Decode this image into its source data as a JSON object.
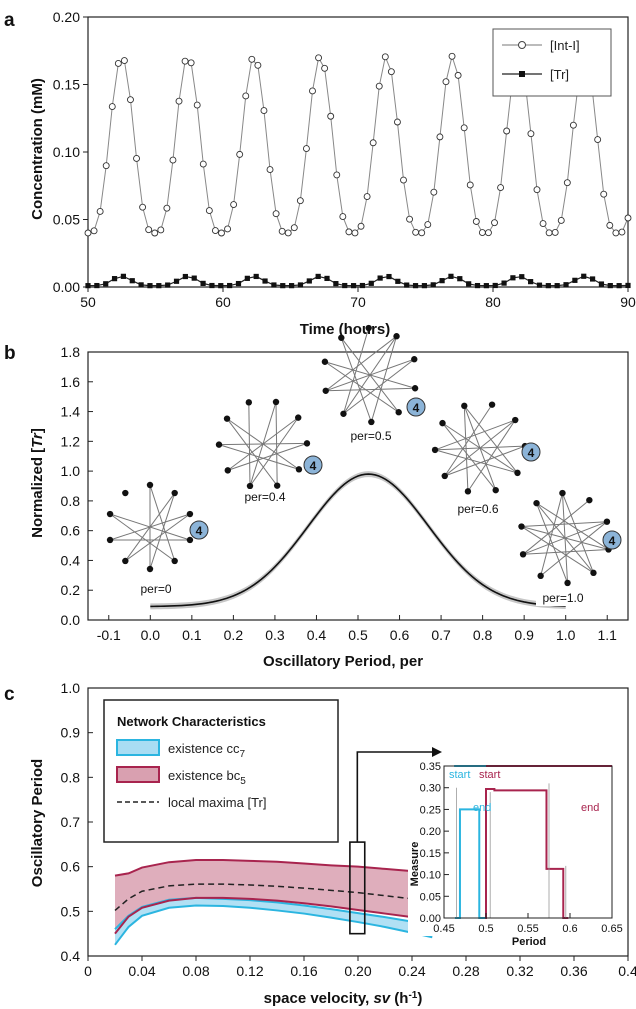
{
  "panels": [
    "a",
    "b",
    "c"
  ],
  "colors": {
    "int": "#555555",
    "tr": "#111111",
    "cyan": "#2bb5e0",
    "cyan_fill": "#a9ddf3",
    "red": "#a8244e",
    "red_fill": "#d9a0b0",
    "badge": "#8cb4d8"
  },
  "chart_data": [
    {
      "type": "line",
      "id": "a",
      "xlabel": "Time (hours)",
      "ylabel": "Concentration (mM)",
      "xlim": [
        50,
        90
      ],
      "ylim": [
        0.0,
        0.2
      ],
      "xticks": [
        "50",
        "60",
        "70",
        "80",
        "90"
      ],
      "yticks": [
        "0.00",
        "0.05",
        "0.10",
        "0.15",
        "0.20"
      ],
      "legend_position": "top-right",
      "series": [
        {
          "name": "[Int-I]",
          "marker": "open-circle",
          "period": 4.9,
          "first_peak": 52.5,
          "min": 0.04,
          "max": 0.171,
          "points": 90
        },
        {
          "name": "[Tr]",
          "marker": "filled-square",
          "period": 4.9,
          "first_peak": 52.5,
          "min": 0.001,
          "max": 0.008,
          "points": 62
        }
      ]
    },
    {
      "type": "line",
      "id": "b",
      "xlabel": "Oscillatory Period, per",
      "ylabel_parts": [
        "Normalized [",
        "Tr",
        "]"
      ],
      "xlim": [
        -0.15,
        1.15
      ],
      "ylim": [
        0.0,
        1.8
      ],
      "xticks": [
        "-0.1",
        "0.0",
        "0.1",
        "0.2",
        "0.3",
        "0.4",
        "0.5",
        "0.6",
        "0.7",
        "0.8",
        "0.9",
        "1.0",
        "1.1"
      ],
      "yticks": [
        "0.0",
        "0.2",
        "0.4",
        "0.6",
        "0.8",
        "1.0",
        "1.2",
        "1.4",
        "1.6",
        "1.8"
      ],
      "curve": {
        "x0": 0.0,
        "x1": 1.0,
        "peak_x": 0.525,
        "peak_y": 0.98,
        "base_y": 0.09,
        "width": 0.145
      },
      "networks": [
        {
          "label": "per=0",
          "badge": "4"
        },
        {
          "label": "per=0.4",
          "badge": "4"
        },
        {
          "label": "per=0.5",
          "badge": "4"
        },
        {
          "label": "per=0.6",
          "badge": "4"
        },
        {
          "label": "per=1.0",
          "badge": "4"
        }
      ]
    },
    {
      "type": "area",
      "id": "c",
      "xlabel_parts": [
        "space velocity, ",
        "sv",
        " (h",
        "-1",
        ")"
      ],
      "ylabel": "Oscillatory Period",
      "xlim": [
        0,
        0.4
      ],
      "ylim": [
        0.4,
        1.0
      ],
      "xticks": [
        "0",
        "0.04",
        "0.08",
        "0.12",
        "0.16",
        "0.20",
        "0.24",
        "0.28",
        "0.32",
        "0.36",
        "0.4"
      ],
      "yticks": [
        "0.4",
        "0.5",
        "0.6",
        "0.7",
        "0.8",
        "0.9",
        "1.0"
      ],
      "legend": {
        "title": "Network Characteristics",
        "items": [
          {
            "label": "existence cc",
            "sub": "7"
          },
          {
            "label": "existence bc",
            "sub": "5"
          },
          {
            "label": "local maxima [Tr]"
          }
        ]
      },
      "x": [
        0.02,
        0.03,
        0.04,
        0.06,
        0.08,
        0.1,
        0.12,
        0.14,
        0.16,
        0.18,
        0.2,
        0.22,
        0.24,
        0.255
      ],
      "cc7_low": [
        0.425,
        0.465,
        0.49,
        0.508,
        0.513,
        0.512,
        0.508,
        0.502,
        0.495,
        0.486,
        0.476,
        0.465,
        0.452,
        0.442
      ],
      "cc7_high": [
        0.46,
        0.49,
        0.51,
        0.526,
        0.53,
        0.528,
        0.525,
        0.52,
        0.513,
        0.505,
        0.496,
        0.487,
        0.477,
        0.47
      ],
      "bc5_low": [
        0.45,
        0.488,
        0.508,
        0.524,
        0.53,
        0.53,
        0.528,
        0.524,
        0.518,
        0.511,
        0.503,
        0.495,
        0.487,
        0.482
      ],
      "bc5_high": [
        0.58,
        0.585,
        0.598,
        0.61,
        0.615,
        0.615,
        0.613,
        0.611,
        0.607,
        0.603,
        0.6,
        0.595,
        0.59,
        0.585
      ],
      "tr_maxima": [
        0.502,
        0.528,
        0.545,
        0.557,
        0.561,
        0.561,
        0.559,
        0.556,
        0.552,
        0.547,
        0.542,
        0.535,
        0.528,
        0.52
      ],
      "highlight_box": {
        "x": [
          0.194,
          0.205
        ],
        "y": [
          0.45,
          0.655
        ]
      },
      "inset": {
        "xlabel": "Period",
        "ylabel": "Measure",
        "xlim": [
          0.45,
          0.65
        ],
        "ylim": [
          0.0,
          0.35
        ],
        "xticks": [
          "0.45",
          "0.5",
          "0.55",
          "0.6",
          "0.65"
        ],
        "yticks": [
          "0.00",
          "0.05",
          "0.10",
          "0.15",
          "0.20",
          "0.25",
          "0.30",
          "0.35"
        ],
        "annotations": [
          {
            "text": "start",
            "color": "cyan"
          },
          {
            "text": "end",
            "color": "cyan"
          },
          {
            "text": "start",
            "color": "red"
          },
          {
            "text": "end",
            "color": "red"
          }
        ],
        "cc7_step": {
          "x": [
            0.463,
            0.469,
            0.469,
            0.492,
            0.492,
            0.499
          ],
          "y": [
            0.0,
            0.0,
            0.25,
            0.25,
            0.0,
            0.0
          ]
        },
        "bc5_step": {
          "x": [
            0.495,
            0.5,
            0.5,
            0.51,
            0.51,
            0.572,
            0.572,
            0.592,
            0.592,
            0.598
          ],
          "y": [
            0.0,
            0.0,
            0.297,
            0.297,
            0.294,
            0.294,
            0.113,
            0.113,
            0.0,
            0.0
          ]
        },
        "cc7_upper": {
          "x": [
            0.462,
            0.5
          ],
          "y": 0.35
        },
        "bc5_upper": {
          "x": [
            0.5,
            0.65
          ],
          "y": 0.35
        }
      }
    }
  ]
}
